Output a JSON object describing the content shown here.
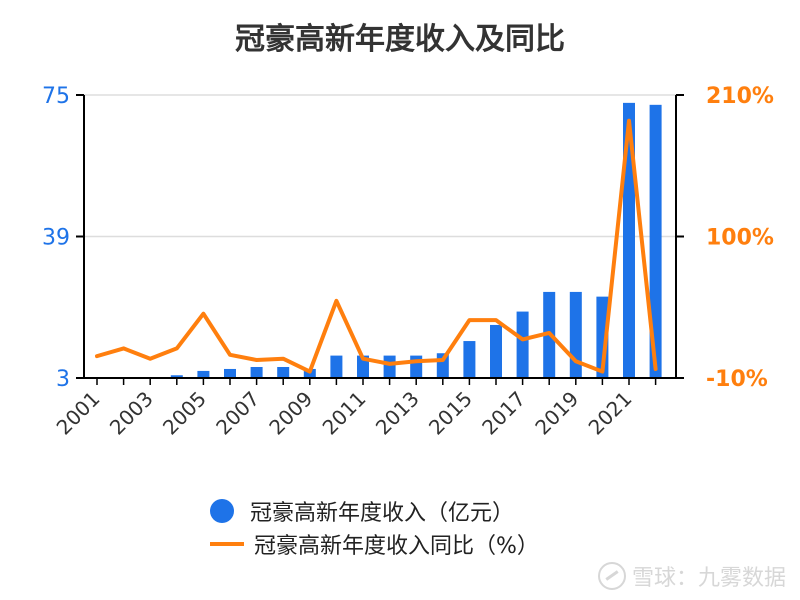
{
  "chart_data": {
    "title": "冠豪高新年度收入及同比",
    "x": [
      2001,
      2002,
      2003,
      2004,
      2005,
      2006,
      2007,
      2008,
      2009,
      2010,
      2011,
      2012,
      2013,
      2014,
      2015,
      2016,
      2017,
      2018,
      2019,
      2020,
      2021,
      2022
    ],
    "x_tick_labels": [
      "2001",
      "2003",
      "2005",
      "2007",
      "2009",
      "2011",
      "2013",
      "2015",
      "2017",
      "2019",
      "2021"
    ],
    "left_axis": {
      "ylim": [
        3,
        75
      ],
      "ticks": [
        "3",
        "39",
        "75"
      ],
      "color": "#1e73e8"
    },
    "right_axis": {
      "ylim": [
        -10,
        210
      ],
      "ticks": [
        "-10%",
        "100%",
        "210%"
      ],
      "color": "#ff7f0e"
    },
    "series": [
      {
        "name": "冠豪高新年度收入（亿元）",
        "type": "bar",
        "axis": "left",
        "color": "#1e73e8",
        "values": [
          0,
          0,
          0,
          3.7,
          4.8,
          5.3,
          5.8,
          5.8,
          5.3,
          8.7,
          8.7,
          8.7,
          8.7,
          9.3,
          12.4,
          16.5,
          19.9,
          24.9,
          24.9,
          23.7,
          73,
          72.5
        ]
      },
      {
        "name": "冠豪高新年度收入同比（%）",
        "type": "line",
        "axis": "right",
        "color": "#ff7f0e",
        "values": [
          7,
          13,
          5,
          13,
          40,
          8,
          4,
          5,
          -5,
          50,
          5,
          1,
          3,
          4,
          35,
          35,
          20,
          25,
          3,
          -5,
          190,
          -3
        ]
      }
    ],
    "grid": true,
    "legend_position": "bottom"
  },
  "watermark": {
    "text": "雪球：九雾数据"
  }
}
